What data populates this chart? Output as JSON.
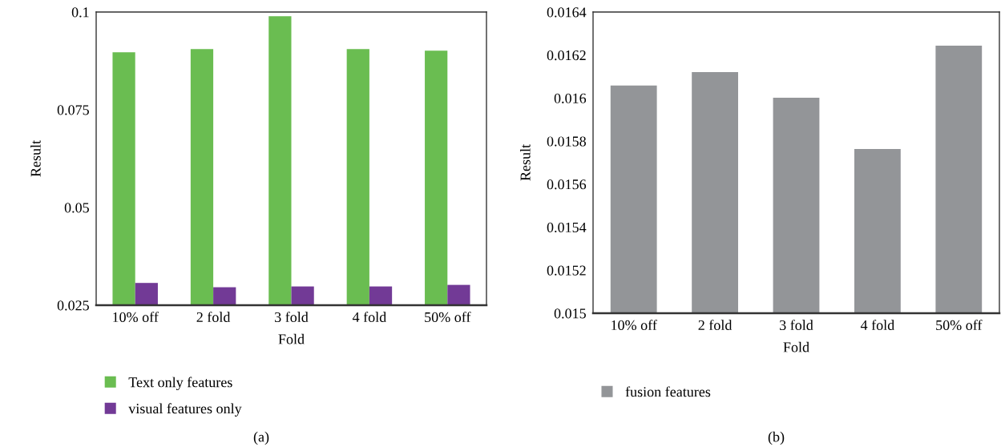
{
  "chart_data": [
    {
      "type": "bar",
      "categories": [
        "10% off",
        "2 fold",
        "3 fold",
        "4 fold",
        "50% off"
      ],
      "xlabel": "Fold",
      "ylabel": "Result",
      "ylim": [
        0.025,
        0.1
      ],
      "yticks": [
        0.025,
        0.05,
        0.075,
        0.1
      ],
      "grid": false,
      "legend": "bottom",
      "annotations": [
        "(a)"
      ],
      "series": [
        {
          "name": "Text only features",
          "color": "#6abd51",
          "values": [
            0.0897,
            0.0905,
            0.0989,
            0.0905,
            0.0901
          ]
        },
        {
          "name": "visual features only",
          "color": "#723a96",
          "values": [
            0.0307,
            0.0296,
            0.0298,
            0.0298,
            0.0302
          ]
        }
      ]
    },
    {
      "type": "bar",
      "categories": [
        "10% off",
        "2 fold",
        "3 fold",
        "4 fold",
        "50% off"
      ],
      "xlabel": "Fold",
      "ylabel": "Result",
      "ylim": [
        0.015,
        0.0164
      ],
      "yticks": [
        0.015,
        0.0152,
        0.0154,
        0.0156,
        0.0158,
        0.016,
        0.0162,
        0.0164
      ],
      "grid": false,
      "legend": "bottom",
      "annotations": [
        "(b)"
      ],
      "series": [
        {
          "name": "fusion features",
          "color": "#939598",
          "values": [
            0.016058,
            0.016121,
            0.016002,
            0.015763,
            0.016244
          ]
        }
      ]
    }
  ]
}
